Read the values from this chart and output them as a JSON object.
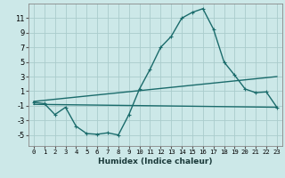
{
  "title": "",
  "xlabel": "Humidex (Indice chaleur)",
  "bg_color": "#cce8e8",
  "grid_color": "#aacccc",
  "line_color": "#1a6b6b",
  "xlim": [
    -0.5,
    23.5
  ],
  "ylim": [
    -6.5,
    13.0
  ],
  "yticks": [
    -5,
    -3,
    -1,
    1,
    3,
    5,
    7,
    9,
    11
  ],
  "xticks": [
    0,
    1,
    2,
    3,
    4,
    5,
    6,
    7,
    8,
    9,
    10,
    11,
    12,
    13,
    14,
    15,
    16,
    17,
    18,
    19,
    20,
    21,
    22,
    23
  ],
  "curve1_x": [
    0,
    1,
    2,
    3,
    4,
    5,
    6,
    7,
    8,
    9,
    10,
    11,
    12,
    13,
    14,
    15,
    16,
    17,
    18,
    19,
    20,
    21,
    22,
    23
  ],
  "curve1_y": [
    -0.5,
    -0.7,
    -2.2,
    -1.2,
    -3.8,
    -4.8,
    -4.9,
    -4.7,
    -5.0,
    -2.2,
    1.3,
    4.0,
    7.0,
    8.5,
    11.0,
    11.8,
    12.3,
    9.5,
    5.0,
    3.2,
    1.3,
    0.8,
    0.9,
    -1.2
  ],
  "curve2_x": [
    0,
    23
  ],
  "curve2_y": [
    -0.4,
    3.0
  ],
  "curve3_x": [
    0,
    23
  ],
  "curve3_y": [
    -0.8,
    -1.2
  ],
  "line_width": 1.0,
  "marker": "+",
  "marker_size": 3.5,
  "marker_edge_width": 0.8
}
